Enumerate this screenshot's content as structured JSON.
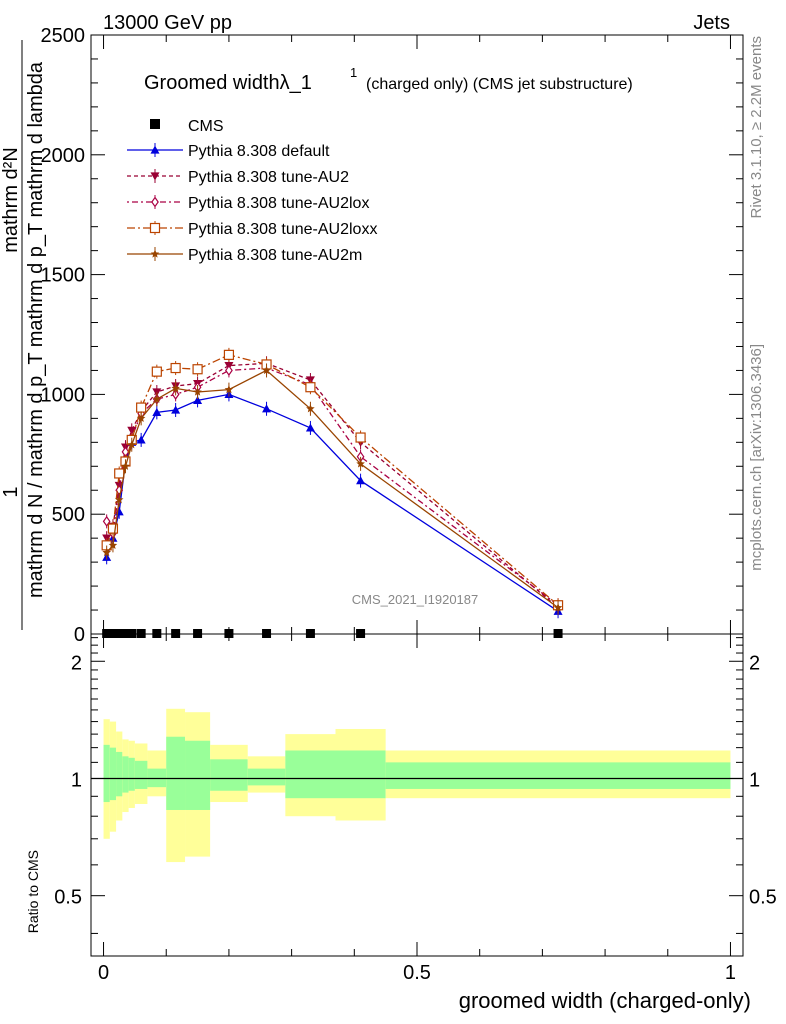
{
  "header": {
    "energy": "13000 GeV pp",
    "category": "Jets"
  },
  "side_labels": {
    "rivet": "Rivet 3.1.10, ≥ 2.2M events",
    "mcplots": "mcplots.cern.ch [arXiv:1306.3436]"
  },
  "watermark": "CMS_2021_I1920187",
  "chart_data": [
    {
      "type": "line",
      "title": "Groomed widthλ_1",
      "title_sup": "1",
      "subtitle": "(charged only) (CMS jet substructure)",
      "ylabel_num": "1",
      "ylabel_den": "mathrm d N / mathrm d p_T mathrm d p_T mathrm d lambda",
      "ylabel_top": "mathrm d²N",
      "xlim": [
        -0.02,
        1.02
      ],
      "ylim": [
        0,
        2500
      ],
      "yticks": [
        "0",
        "500",
        "1000",
        "1500",
        "2000",
        "2500"
      ],
      "legend_position": "top-left",
      "cms_points": {
        "name": "CMS",
        "x": [
          0.005,
          0.015,
          0.025,
          0.035,
          0.045,
          0.06,
          0.085,
          0.115,
          0.15,
          0.2,
          0.26,
          0.33,
          0.41,
          0.725
        ],
        "y": [
          0,
          0,
          0,
          0,
          0,
          0,
          0,
          0,
          0,
          0,
          0,
          0,
          0,
          0
        ]
      },
      "x": [
        0.005,
        0.015,
        0.025,
        0.035,
        0.045,
        0.06,
        0.085,
        0.115,
        0.15,
        0.2,
        0.26,
        0.33,
        0.41,
        0.725
      ],
      "series": [
        {
          "name": "Pythia 8.308 default",
          "color": "#0000dd",
          "marker": "triangle-up",
          "dash": "",
          "values": [
            320,
            400,
            510,
            720,
            800,
            810,
            925,
            935,
            975,
            1000,
            940,
            860,
            640,
            95
          ]
        },
        {
          "name": "Pythia 8.308 tune-AU2",
          "color": "#990033",
          "marker": "triangle-down",
          "dash": "4,3",
          "values": [
            400,
            450,
            620,
            780,
            850,
            930,
            1010,
            1035,
            1045,
            1120,
            1130,
            1060,
            800,
            110
          ]
        },
        {
          "name": "Pythia 8.308 tune-AU2lox",
          "color": "#aa0044",
          "marker": "diamond-open",
          "dash": "2,3,6,3",
          "values": [
            470,
            420,
            600,
            760,
            820,
            920,
            980,
            1000,
            1030,
            1100,
            1110,
            1040,
            740,
            120
          ]
        },
        {
          "name": "Pythia 8.308 tune-AU2loxx",
          "color": "#bb4400",
          "marker": "square-open",
          "dash": "8,3,2,3",
          "values": [
            370,
            440,
            670,
            720,
            810,
            945,
            1095,
            1110,
            1105,
            1165,
            1125,
            1030,
            820,
            120
          ]
        },
        {
          "name": "Pythia 8.308 tune-AU2m",
          "color": "#994400",
          "marker": "star",
          "dash": "",
          "values": [
            340,
            370,
            560,
            700,
            790,
            900,
            980,
            1025,
            1010,
            1020,
            1100,
            940,
            710,
            110
          ]
        }
      ]
    },
    {
      "type": "area",
      "ylabel": "Ratio to CMS",
      "xlabel": "groomed width (charged-only)",
      "xlim": [
        -0.02,
        1.02
      ],
      "ylim": [
        0.35,
        2.35
      ],
      "xticks": [
        "0",
        "0.5",
        "1"
      ],
      "yticks": [
        "0.5",
        "1",
        "2"
      ],
      "band_colors": {
        "inner": "#99ff99",
        "outer": "#ffff99"
      },
      "bins": [
        {
          "x0": 0.0,
          "x1": 0.01,
          "inner": [
            0.87,
            1.22
          ],
          "outer": [
            0.7,
            1.42
          ]
        },
        {
          "x0": 0.01,
          "x1": 0.02,
          "inner": [
            0.88,
            1.2
          ],
          "outer": [
            0.73,
            1.4
          ]
        },
        {
          "x0": 0.02,
          "x1": 0.03,
          "inner": [
            0.9,
            1.17
          ],
          "outer": [
            0.78,
            1.32
          ]
        },
        {
          "x0": 0.03,
          "x1": 0.04,
          "inner": [
            0.92,
            1.14
          ],
          "outer": [
            0.82,
            1.26
          ]
        },
        {
          "x0": 0.04,
          "x1": 0.05,
          "inner": [
            0.93,
            1.13
          ],
          "outer": [
            0.84,
            1.25
          ]
        },
        {
          "x0": 0.05,
          "x1": 0.07,
          "inner": [
            0.94,
            1.11
          ],
          "outer": [
            0.86,
            1.23
          ]
        },
        {
          "x0": 0.07,
          "x1": 0.1,
          "inner": [
            0.95,
            1.06
          ],
          "outer": [
            0.9,
            1.18
          ]
        },
        {
          "x0": 0.1,
          "x1": 0.13,
          "inner": [
            0.83,
            1.28
          ],
          "outer": [
            0.61,
            1.51
          ]
        },
        {
          "x0": 0.13,
          "x1": 0.17,
          "inner": [
            0.83,
            1.25
          ],
          "outer": [
            0.63,
            1.48
          ]
        },
        {
          "x0": 0.17,
          "x1": 0.23,
          "inner": [
            0.93,
            1.12
          ],
          "outer": [
            0.87,
            1.22
          ]
        },
        {
          "x0": 0.23,
          "x1": 0.29,
          "inner": [
            0.96,
            1.06
          ],
          "outer": [
            0.92,
            1.14
          ]
        },
        {
          "x0": 0.29,
          "x1": 0.37,
          "inner": [
            0.89,
            1.18
          ],
          "outer": [
            0.8,
            1.3
          ]
        },
        {
          "x0": 0.37,
          "x1": 0.45,
          "inner": [
            0.89,
            1.18
          ],
          "outer": [
            0.78,
            1.34
          ]
        },
        {
          "x0": 0.45,
          "x1": 1.0,
          "inner": [
            0.94,
            1.1
          ],
          "outer": [
            0.89,
            1.18
          ]
        }
      ],
      "reference": 1
    }
  ]
}
